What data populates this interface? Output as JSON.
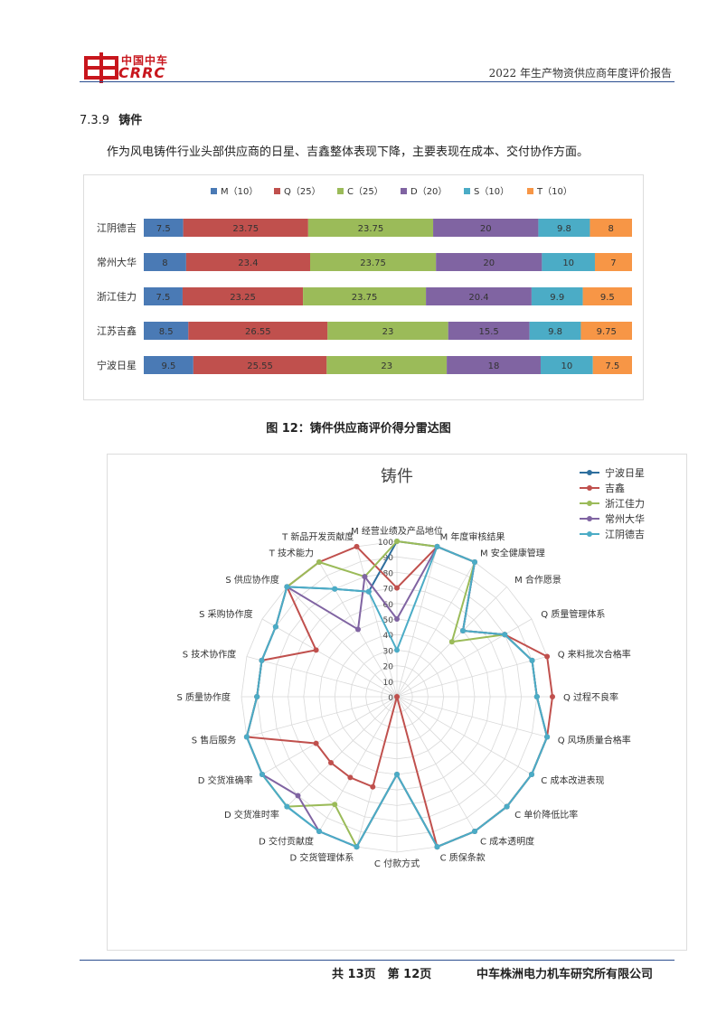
{
  "header": {
    "logo_cn": "中国中车",
    "logo_en": "CRRC",
    "report_title": "2022 年生产物资供应商年度评价报告"
  },
  "section": {
    "number": "7.3.9",
    "title": "铸件",
    "paragraph": "作为风电铸件行业头部供应商的日星、吉鑫整体表现下降，主要表现在成本、交付协作方面。"
  },
  "figure_caption": "图 12：铸件供应商评价得分雷达图",
  "colors": {
    "M": "#4a7ab5",
    "Q": "#c0504d",
    "C": "#9bbb59",
    "D": "#8064a2",
    "S": "#4bacc6",
    "T": "#f79646",
    "radar_rixing": "#2e6f9e",
    "radar_jixin": "#c0504d",
    "radar_jiali": "#9bbb59",
    "radar_dahua": "#8064a2",
    "radar_deji": "#4bacc6"
  },
  "chart_data": [
    {
      "type": "bar",
      "stacked": true,
      "orientation": "horizontal",
      "legend_position": "top",
      "categories": [
        "江阴德吉",
        "常州大华",
        "浙江佳力",
        "江苏吉鑫",
        "宁波日星"
      ],
      "series": [
        {
          "name": "M（10）",
          "values": [
            7.5,
            8,
            7.5,
            8.5,
            9.5
          ]
        },
        {
          "name": "Q（25）",
          "values": [
            23.75,
            23.4,
            23.25,
            26.55,
            25.55
          ]
        },
        {
          "name": "C（25）",
          "values": [
            23.75,
            23.75,
            23.75,
            23,
            23
          ]
        },
        {
          "name": "D（20）",
          "values": [
            20,
            20,
            20.4,
            15.5,
            18
          ]
        },
        {
          "name": "S（10）",
          "values": [
            9.8,
            10,
            9.9,
            9.8,
            10
          ]
        },
        {
          "name": "T（10）",
          "values": [
            8,
            7,
            9.5,
            9.75,
            7.5
          ]
        }
      ],
      "labels": [
        [
          "7.5",
          "23.75",
          "23.75",
          "20",
          "9.8",
          "8"
        ],
        [
          "8",
          "23.4",
          "23.75",
          "20",
          "10",
          "7"
        ],
        [
          "7.5",
          "23.25",
          "23.75",
          "20.4",
          "9.9",
          "9.5"
        ],
        [
          "8.5",
          "26.55",
          "23",
          "15.5",
          "9.8",
          "9.75"
        ],
        [
          "9.5",
          "25.55",
          "23",
          "18",
          "10",
          "7.5"
        ]
      ]
    },
    {
      "type": "radar",
      "title": "铸件",
      "rmax": 100,
      "ticks": [
        "0",
        "10",
        "20",
        "30",
        "40",
        "50",
        "60",
        "70",
        "80",
        "90",
        "100"
      ],
      "axes": [
        "M 经营业绩及产品地位",
        "M 年度审核结果",
        "M 安全健康管理",
        "M 合作愿景",
        "Q 质量管理体系",
        "Q 来料批次合格率",
        "Q 过程不良率",
        "Q 风场质量合格率",
        "C 成本改进表现",
        "C 单价降低比率",
        "C 成本透明度",
        "C 质保条款",
        "C 付款方式",
        "D 交货管理体系",
        "D 交付贡献度",
        "D 交货准时率",
        "D 交货准确率",
        "S 售后服务",
        "S 质量协作度",
        "S 技术协作度",
        "S 采购协作度",
        "S 供应协作度",
        "T 技术能力",
        "T 新品开发贡献度"
      ],
      "legend_position": "top-right",
      "series": [
        {
          "name": "宁波日星",
          "values": [
            100,
            100,
            100,
            60,
            80,
            90,
            90,
            100,
            100,
            100,
            100,
            100,
            50,
            100,
            100,
            100,
            100,
            100,
            90,
            90,
            90,
            100,
            80,
            70
          ]
        },
        {
          "name": "吉鑫",
          "values": [
            70,
            100,
            100,
            60,
            80,
            100,
            100,
            100,
            100,
            100,
            100,
            100,
            0,
            60,
            60,
            60,
            60,
            100,
            90,
            90,
            60,
            100,
            100,
            100
          ]
        },
        {
          "name": "浙江佳力",
          "values": [
            100,
            100,
            100,
            50,
            80,
            90,
            90,
            100,
            100,
            100,
            100,
            100,
            50,
            100,
            80,
            100,
            100,
            100,
            90,
            90,
            90,
            100,
            100,
            80
          ]
        },
        {
          "name": "常州大华",
          "values": [
            50,
            100,
            100,
            60,
            80,
            90,
            90,
            100,
            100,
            100,
            100,
            100,
            50,
            100,
            100,
            90,
            100,
            100,
            90,
            90,
            90,
            100,
            50,
            80
          ]
        },
        {
          "name": "江阴德吉",
          "values": [
            30,
            100,
            100,
            60,
            80,
            90,
            90,
            100,
            100,
            100,
            100,
            100,
            50,
            100,
            100,
            100,
            100,
            100,
            90,
            90,
            90,
            100,
            80,
            70
          ]
        }
      ]
    }
  ],
  "footer": {
    "page": "共 13页　第 12页",
    "company": "中车株洲电力机车研究所有限公司"
  }
}
